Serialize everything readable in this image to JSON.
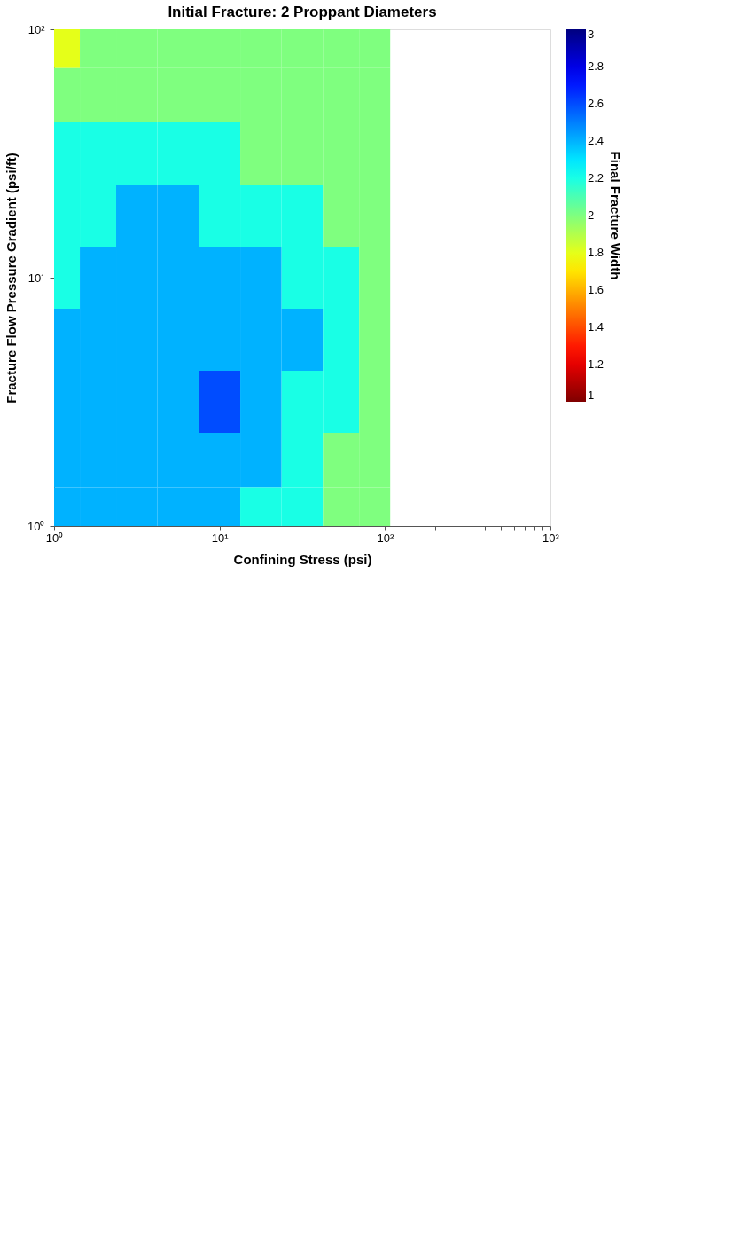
{
  "chart_data": {
    "type": "heatmap",
    "title": "Initial Fracture: 2 Proppant Diameters",
    "xlabel": "Confining Stress (psi)",
    "ylabel": "Fracture Flow Pressure Gradient (psi/ft)",
    "clabel": "Final Fracture Width",
    "x": [
      1.15,
      1.78,
      3.16,
      5.62,
      10,
      17.8,
      31.6,
      56.2,
      86.6
    ],
    "y": [
      86.6,
      56.2,
      31.6,
      17.8,
      10,
      5.62,
      3.16,
      1.78,
      1.15
    ],
    "cells": [
      [
        1.8,
        2,
        2,
        2,
        2,
        2,
        2,
        2,
        2
      ],
      [
        2,
        2,
        2,
        2,
        2,
        2,
        2,
        2,
        2
      ],
      [
        2.2,
        2.2,
        2.2,
        2.2,
        2.2,
        2,
        2,
        2,
        2
      ],
      [
        2.2,
        2.2,
        2.4,
        2.4,
        2.2,
        2.2,
        2.2,
        2,
        2
      ],
      [
        2.2,
        2.4,
        2.4,
        2.4,
        2.4,
        2.4,
        2.2,
        2.2,
        2
      ],
      [
        2.4,
        2.4,
        2.4,
        2.4,
        2.4,
        2.4,
        2.4,
        2.2,
        2
      ],
      [
        2.4,
        2.4,
        2.4,
        2.4,
        2.6,
        2.4,
        2.2,
        2.2,
        2
      ],
      [
        2.4,
        2.4,
        2.4,
        2.4,
        2.4,
        2.4,
        2.2,
        2,
        2
      ],
      [
        2.4,
        2.4,
        2.4,
        2.4,
        2.4,
        2.2,
        2.2,
        2,
        2
      ]
    ],
    "xlim": [
      1,
      1000
    ],
    "xticks": [
      {
        "value": 1,
        "label": "10⁰"
      },
      {
        "value": 10,
        "label": "10¹"
      },
      {
        "value": 100,
        "label": "10²"
      },
      {
        "value": 200,
        "label": null
      },
      {
        "value": 300,
        "label": null
      },
      {
        "value": 400,
        "label": null
      },
      {
        "value": 500,
        "label": null
      },
      {
        "value": 600,
        "label": null
      },
      {
        "value": 700,
        "label": null
      },
      {
        "value": 800,
        "label": null
      },
      {
        "value": 900,
        "label": null
      },
      {
        "value": 1000,
        "label": "10³"
      }
    ],
    "ylim": [
      1,
      100
    ],
    "yticks": [
      {
        "value": 1,
        "label": "10⁰"
      },
      {
        "value": 10,
        "label": "10¹"
      },
      {
        "value": 100,
        "label": "10²"
      }
    ],
    "log": "xy",
    "grid": false,
    "clim": [
      1,
      3
    ],
    "cticks": [
      1,
      1.2,
      1.4,
      1.6,
      1.8,
      2,
      2.2,
      2.4,
      2.6,
      2.8,
      3
    ]
  }
}
